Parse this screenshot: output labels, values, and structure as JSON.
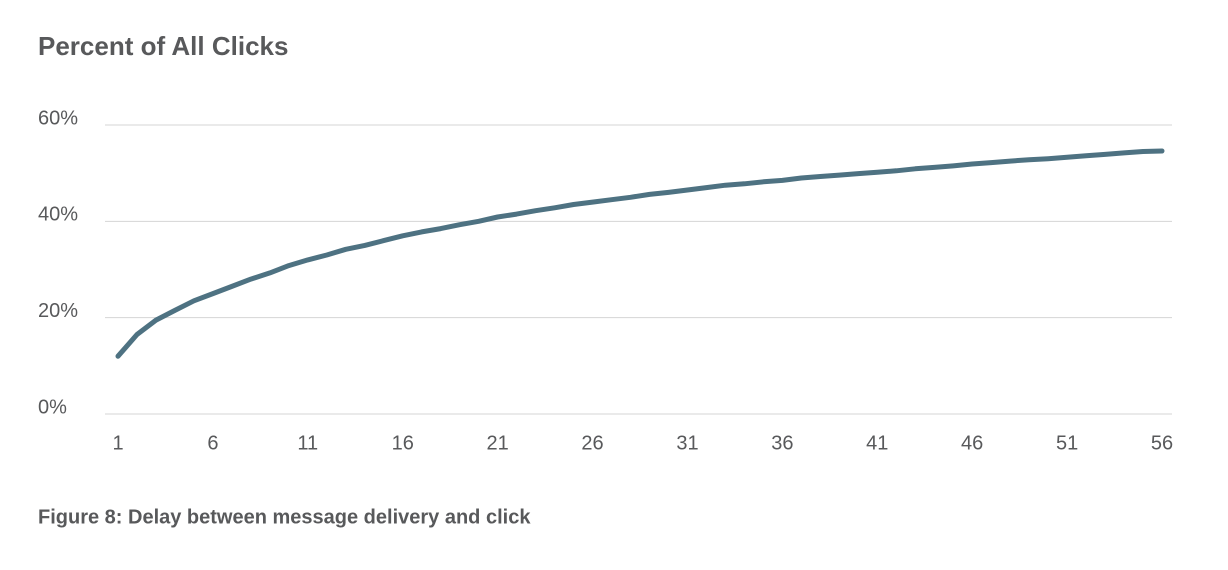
{
  "chart_data": {
    "type": "line",
    "title": "Percent of All Clicks",
    "caption": "Figure 8: Delay between message delivery and click",
    "x": [
      1,
      2,
      3,
      4,
      5,
      6,
      7,
      8,
      9,
      10,
      11,
      12,
      13,
      14,
      15,
      16,
      17,
      18,
      19,
      20,
      21,
      22,
      23,
      24,
      25,
      26,
      27,
      28,
      29,
      30,
      31,
      32,
      33,
      34,
      35,
      36,
      37,
      38,
      39,
      40,
      41,
      42,
      43,
      44,
      45,
      46,
      47,
      48,
      49,
      50,
      51,
      52,
      53,
      54,
      55,
      56
    ],
    "values": [
      12,
      16.5,
      19.5,
      21.5,
      23.5,
      25,
      26.5,
      28,
      29.3,
      30.8,
      32,
      33,
      34.2,
      35,
      36,
      37,
      37.8,
      38.5,
      39.3,
      40,
      40.9,
      41.5,
      42.2,
      42.8,
      43.5,
      44,
      44.5,
      45,
      45.6,
      46,
      46.5,
      47,
      47.5,
      47.8,
      48.2,
      48.5,
      49,
      49.3,
      49.6,
      49.9,
      50.2,
      50.5,
      50.9,
      51.2,
      51.5,
      51.9,
      52.2,
      52.5,
      52.8,
      53,
      53.3,
      53.6,
      53.9,
      54.2,
      54.5,
      54.6
    ],
    "color": "#4e7282",
    "xlim": [
      1,
      56
    ],
    "xticks": [
      1,
      6,
      11,
      16,
      21,
      26,
      31,
      36,
      41,
      46,
      51,
      56
    ],
    "ylim": [
      0,
      60
    ],
    "yticks": [
      {
        "value": 0,
        "label": "0%"
      },
      {
        "value": 20,
        "label": "20%"
      },
      {
        "value": 40,
        "label": "40%"
      },
      {
        "value": 60,
        "label": "60%"
      }
    ],
    "grid": true
  }
}
